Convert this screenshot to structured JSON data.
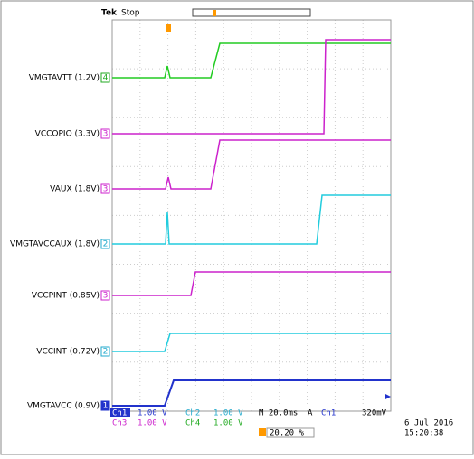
{
  "header": {
    "brand": "Tek",
    "status": "Stop"
  },
  "channels": [
    {
      "label": "VMGTAVTT (1.2V)",
      "marker": "4"
    },
    {
      "label": "VCCOPIO (3.3V)",
      "marker": "3"
    },
    {
      "label": "VAUX (1.8V)",
      "marker": "3"
    },
    {
      "label": "VMGTAVCCAUX (1.8V)",
      "marker": "2"
    },
    {
      "label": "VCCPINT (0.85V)",
      "marker": "3"
    },
    {
      "label": "VCCINT (0.72V)",
      "marker": "2"
    },
    {
      "label": "VMGTAVCC (0.9V)",
      "marker": "1"
    }
  ],
  "footer": {
    "ch1": "Ch1",
    "ch1_scale": "1.00 V",
    "ch2": "Ch2",
    "ch2_scale": "1.00 V",
    "timebase": "M 20.0ms",
    "trigger_mode": "A",
    "trigger_source": "Ch1",
    "trigger_level": "320mV",
    "ch3": "Ch3",
    "ch3_scale": "1.00 V",
    "ch4": "Ch4",
    "ch4_scale": "1.00 V",
    "trigger_position": "20.20 %",
    "date": "6 Jul  2016",
    "time": "15:20:38"
  }
}
